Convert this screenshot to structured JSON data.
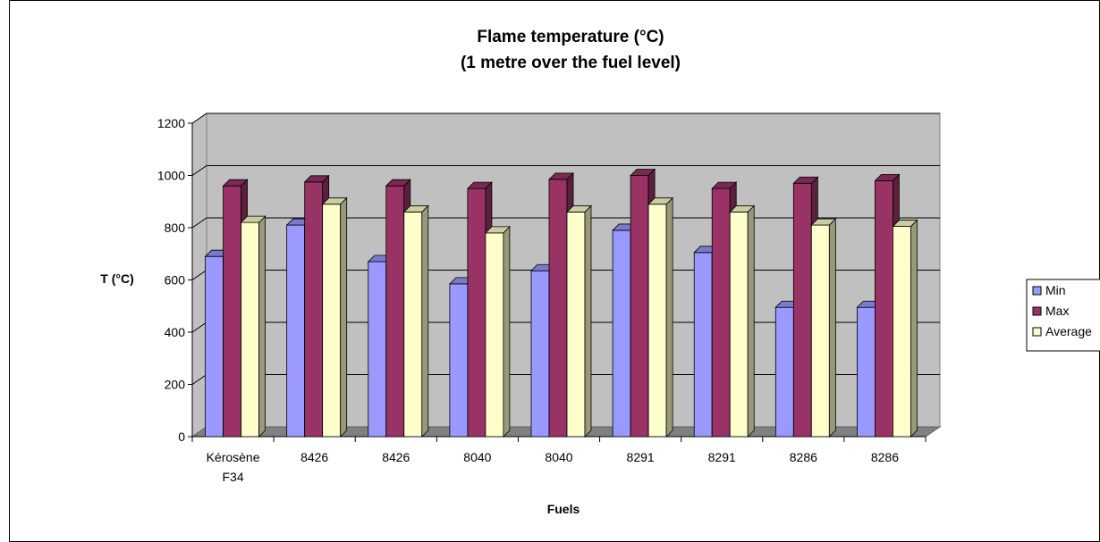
{
  "chart_data": {
    "type": "bar",
    "title": [
      "Flame temperature (°C)",
      "(1 metre over the fuel level)"
    ],
    "xlabel": "Fuels",
    "ylabel": "T (°C)",
    "ylim": [
      0,
      1200
    ],
    "yticks": [
      0,
      200,
      400,
      600,
      800,
      1000,
      1200
    ],
    "categories": [
      [
        "Kérosène",
        "F34"
      ],
      [
        "8426"
      ],
      [
        "8426"
      ],
      [
        "8040"
      ],
      [
        "8040"
      ],
      [
        "8291"
      ],
      [
        "8291"
      ],
      [
        "8286"
      ],
      [
        "8286"
      ]
    ],
    "series": [
      {
        "name": "Min",
        "color": "#9999ff",
        "values": [
          690,
          810,
          670,
          585,
          635,
          790,
          705,
          495,
          495
        ]
      },
      {
        "name": "Max",
        "color": "#993366",
        "values": [
          960,
          975,
          960,
          950,
          985,
          1000,
          950,
          970,
          980
        ]
      },
      {
        "name": "Average",
        "color": "#ffffcc",
        "values": [
          820,
          890,
          860,
          780,
          860,
          890,
          860,
          810,
          805
        ]
      }
    ],
    "grid": true,
    "legend_position": "right",
    "style": "3d-clustered-column",
    "wall_color": "#c0c0c0",
    "floor_color": "#808080"
  }
}
